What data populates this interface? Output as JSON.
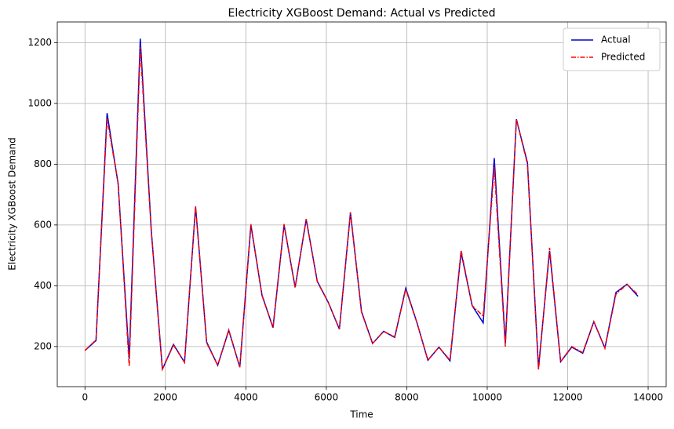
{
  "chart_data": {
    "type": "line",
    "title": "Electricity XGBoost Demand: Actual vs Predicted",
    "x_label": "Time",
    "y_label": "Electricity XGBoost Demand",
    "x": [
      0,
      275,
      550,
      825,
      1100,
      1375,
      1650,
      1925,
      2200,
      2475,
      2750,
      3025,
      3300,
      3575,
      3850,
      4125,
      4400,
      4675,
      4950,
      5225,
      5500,
      5775,
      6050,
      6325,
      6600,
      6875,
      7150,
      7425,
      7700,
      7975,
      8250,
      8525,
      8800,
      9075,
      9350,
      9625,
      9900,
      10175,
      10450,
      10725,
      11000,
      11275,
      11550,
      11825,
      12100,
      12375,
      12650,
      12925,
      13200,
      13475,
      13750
    ],
    "series": [
      {
        "name": "Actual",
        "color": "#0000cc",
        "style": "solid",
        "values": [
          187,
          220,
          968,
          735,
          160,
          1213,
          580,
          125,
          207,
          148,
          660,
          215,
          138,
          253,
          132,
          600,
          370,
          262,
          600,
          395,
          618,
          415,
          345,
          257,
          640,
          315,
          210,
          250,
          230,
          392,
          280,
          155,
          198,
          153,
          510,
          335,
          278,
          820,
          210,
          948,
          805,
          130,
          515,
          150,
          198,
          178,
          282,
          195,
          378,
          405,
          365
        ]
      },
      {
        "name": "Predicted",
        "color": "#ff0000",
        "style": "dashdot",
        "values": [
          187,
          222,
          950,
          738,
          135,
          1185,
          575,
          125,
          205,
          148,
          662,
          212,
          138,
          255,
          132,
          603,
          368,
          262,
          603,
          393,
          620,
          413,
          345,
          257,
          642,
          313,
          210,
          250,
          232,
          388,
          280,
          155,
          198,
          155,
          517,
          335,
          300,
          790,
          200,
          948,
          800,
          122,
          525,
          150,
          200,
          180,
          282,
          195,
          372,
          405,
          370
        ]
      }
    ],
    "xlim": [
      -688,
      14448
    ],
    "xticks": [
      0,
      2000,
      4000,
      6000,
      8000,
      10000,
      12000,
      14000
    ],
    "ylim": [
      68,
      1268
    ],
    "yticks": [
      200,
      400,
      600,
      800,
      1000,
      1200
    ],
    "grid": true,
    "legend": "upper right"
  }
}
